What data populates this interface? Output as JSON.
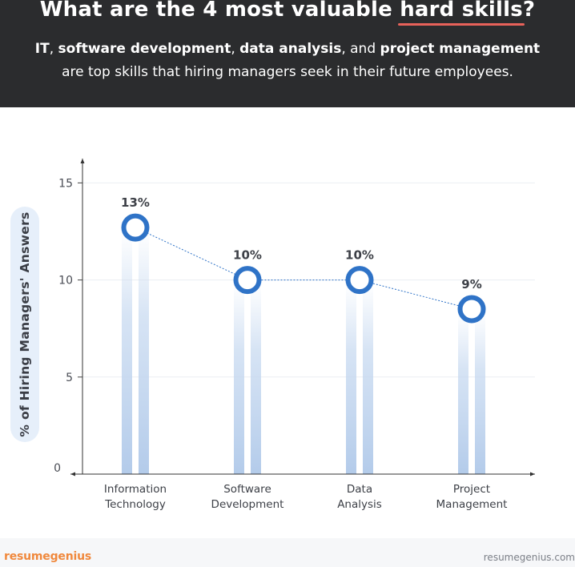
{
  "header": {
    "title_pre": "What are the 4 most valuable ",
    "title_highlight": "hard skills",
    "title_post": "?",
    "subtitle_b1": "IT",
    "subtitle_t1": ", ",
    "subtitle_b2": "software development",
    "subtitle_t2": ", ",
    "subtitle_b3": "data analysis",
    "subtitle_t3": ", and ",
    "subtitle_b4": "project management",
    "subtitle_line2": "are top skills that hiring managers seek in their future employees.",
    "accent_color": "#e8625a",
    "background_color": "#2b2c2e"
  },
  "chart_data": {
    "type": "line",
    "ylabel": "% of Hiring Managers' Answers",
    "ylim": [
      0,
      17
    ],
    "yticks": [
      0,
      5,
      10,
      15
    ],
    "grid": true,
    "categories": [
      "Information Technology",
      "Software Development",
      "Data Analysis",
      "Project Management"
    ],
    "category_lines": [
      [
        "Information",
        "Technology"
      ],
      [
        "Software",
        "Development"
      ],
      [
        "Data",
        "Analysis"
      ],
      [
        "Project",
        "Management"
      ]
    ],
    "values": [
      12.7,
      10,
      10,
      8.5
    ],
    "data_labels": [
      "13%",
      "10%",
      "10%",
      "9%"
    ],
    "marker_color": "#2f73c7",
    "bar_color": "#c5d8f0"
  },
  "footer": {
    "brand_part1": "resume",
    "brand_part2": "genius",
    "site": "resumegenius.com"
  }
}
